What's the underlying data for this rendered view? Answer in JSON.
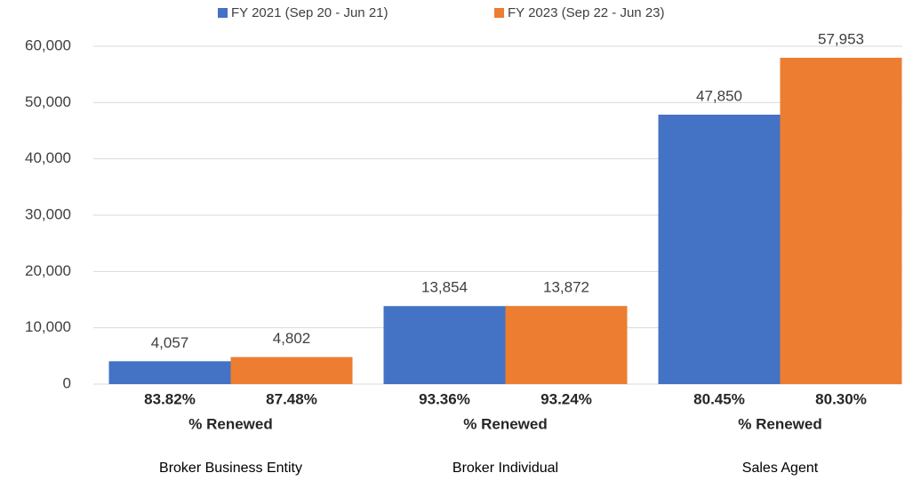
{
  "chart_data": {
    "type": "bar",
    "categories": [
      "Broker Business Entity",
      "Broker Individual",
      "Sales Agent"
    ],
    "series": [
      {
        "name": "FY 2021 (Sep 20 - Jun 21)",
        "color": "#4472c4",
        "values": [
          4057,
          13854,
          47850
        ],
        "value_labels": [
          "4,057",
          "13,854",
          "47,850"
        ],
        "renewed_labels": [
          "83.82%",
          "93.36%",
          "80.45%"
        ]
      },
      {
        "name": "FY 2023 (Sep 22 - Jun 23)",
        "color": "#ed7d31",
        "values": [
          4802,
          13872,
          57953
        ],
        "value_labels": [
          "4,802",
          "13,872",
          "57,953"
        ],
        "renewed_labels": [
          "87.48%",
          "93.24%",
          "80.30%"
        ]
      }
    ],
    "renewed_title": "% Renewed",
    "ylim": [
      0,
      60000
    ],
    "yticks": [
      0,
      {
        "value": 10000,
        "label": "10,000"
      },
      {
        "value": 20000,
        "label": "20,000"
      },
      {
        "value": 30000,
        "label": "30,000"
      },
      {
        "value": 40000,
        "label": "40,000"
      },
      {
        "value": 50000,
        "label": "50,000"
      },
      {
        "value": 60000,
        "label": "60,000"
      }
    ],
    "grid": true,
    "legend": "top"
  }
}
